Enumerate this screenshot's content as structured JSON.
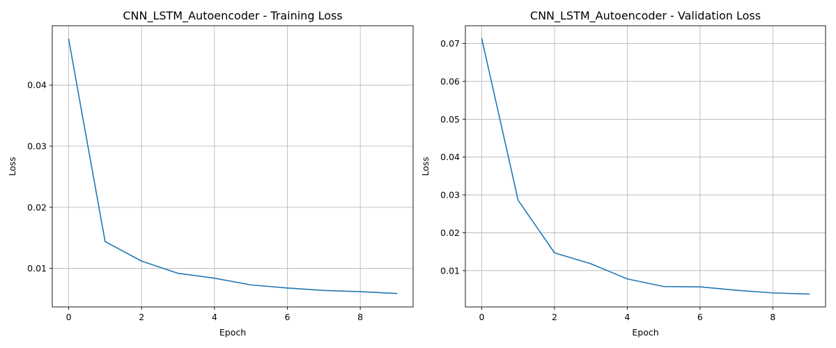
{
  "colors": {
    "line": "#1f77b4",
    "grid": "#b0b0b0",
    "axes": "#000000",
    "background": "#ffffff"
  },
  "chart_data": [
    {
      "type": "line",
      "title": "CNN_LSTM_Autoencoder - Training Loss",
      "xlabel": "Epoch",
      "ylabel": "Loss",
      "grid": true,
      "xlim": [
        -0.45,
        9.45
      ],
      "ylim": [
        0.0037,
        0.0497
      ],
      "xticks": [
        0,
        2,
        4,
        6,
        8
      ],
      "xtick_labels": [
        "0",
        "2",
        "4",
        "6",
        "8"
      ],
      "yticks": [
        0.01,
        0.02,
        0.03,
        0.04
      ],
      "ytick_labels": [
        "0.01",
        "0.02",
        "0.03",
        "0.04"
      ],
      "series": [
        {
          "x": [
            0,
            1,
            2,
            3,
            4,
            5,
            6,
            7,
            8,
            9
          ],
          "y": [
            0.0475,
            0.0144,
            0.0112,
            0.0092,
            0.0084,
            0.0073,
            0.0068,
            0.0064,
            0.0062,
            0.0059
          ]
        }
      ]
    },
    {
      "type": "line",
      "title": "CNN_LSTM_Autoencoder - Validation Loss",
      "xlabel": "Epoch",
      "ylabel": "Loss",
      "grid": true,
      "xlim": [
        -0.45,
        9.45
      ],
      "ylim": [
        0.0004,
        0.0747
      ],
      "xticks": [
        0,
        2,
        4,
        6,
        8
      ],
      "xtick_labels": [
        "0",
        "2",
        "4",
        "6",
        "8"
      ],
      "yticks": [
        0.01,
        0.02,
        0.03,
        0.04,
        0.05,
        0.06,
        0.07
      ],
      "ytick_labels": [
        "0.01",
        "0.02",
        "0.03",
        "0.04",
        "0.05",
        "0.06",
        "0.07"
      ],
      "series": [
        {
          "x": [
            0,
            1,
            2,
            3,
            4,
            5,
            6,
            7,
            8,
            9
          ],
          "y": [
            0.0713,
            0.0286,
            0.0147,
            0.0118,
            0.0078,
            0.0058,
            0.0057,
            0.0048,
            0.0041,
            0.0038
          ]
        }
      ]
    }
  ]
}
